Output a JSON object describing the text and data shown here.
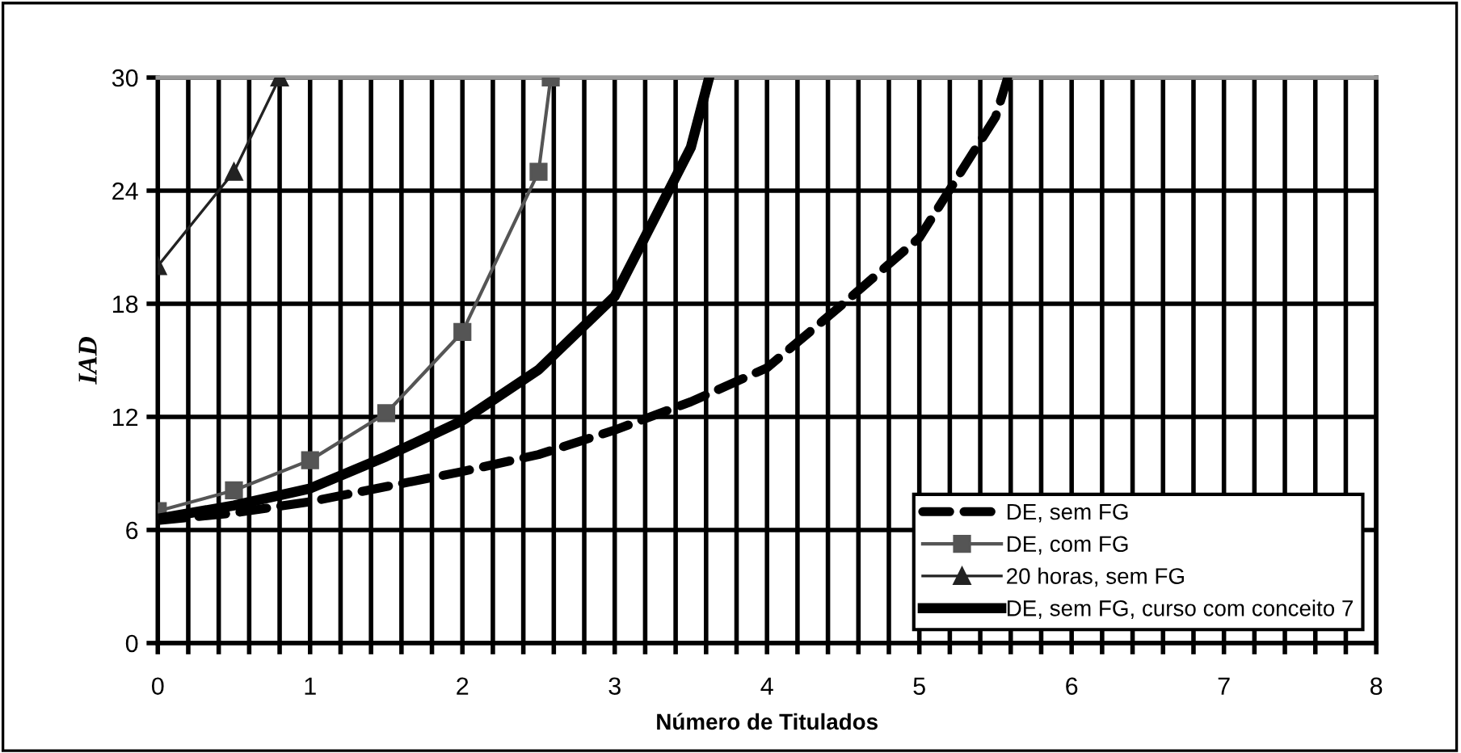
{
  "chart_data": {
    "type": "line",
    "xlabel": "Número de Titulados",
    "ylabel": "IAD",
    "xlim": [
      0,
      8
    ],
    "ylim": [
      0,
      30
    ],
    "xticks": [
      0,
      {
        "value": 0.2,
        "label": null
      },
      {
        "value": 0.4,
        "label": null
      },
      {
        "value": 0.6,
        "label": null
      },
      {
        "value": 0.8,
        "label": null
      },
      1,
      {
        "value": 1.2,
        "label": null
      },
      {
        "value": 1.4,
        "label": null
      },
      {
        "value": 1.6,
        "label": null
      },
      {
        "value": 1.8,
        "label": null
      },
      2,
      {
        "value": 2.2,
        "label": null
      },
      {
        "value": 2.4,
        "label": null
      },
      {
        "value": 2.6,
        "label": null
      },
      {
        "value": 2.8,
        "label": null
      },
      3,
      {
        "value": 3.2,
        "label": null
      },
      {
        "value": 3.4,
        "label": null
      },
      {
        "value": 3.6,
        "label": null
      },
      {
        "value": 3.8,
        "label": null
      },
      4,
      {
        "value": 4.2,
        "label": null
      },
      {
        "value": 4.4,
        "label": null
      },
      {
        "value": 4.6,
        "label": null
      },
      {
        "value": 4.8,
        "label": null
      },
      5,
      {
        "value": 5.2,
        "label": null
      },
      {
        "value": 5.4,
        "label": null
      },
      {
        "value": 5.6,
        "label": null
      },
      {
        "value": 5.8,
        "label": null
      },
      6,
      {
        "value": 6.2,
        "label": null
      },
      {
        "value": 6.4,
        "label": null
      },
      {
        "value": 6.6,
        "label": null
      },
      {
        "value": 6.8,
        "label": null
      },
      7,
      {
        "value": 7.2,
        "label": null
      },
      {
        "value": 7.4,
        "label": null
      },
      {
        "value": 7.6,
        "label": null
      },
      {
        "value": 7.8,
        "label": null
      },
      8
    ],
    "yticks": [
      0,
      6,
      12,
      18,
      24,
      30
    ],
    "grid": true,
    "legend": "bottom right",
    "series": [
      {
        "name": "DE, sem FG",
        "color": "#000000",
        "line_style": "dashed",
        "marker": "none",
        "x": [
          0,
          0.5,
          1,
          1.5,
          2,
          2.5,
          3,
          3.5,
          4,
          4.5,
          5,
          5.5,
          5.58
        ],
        "values": [
          6.5,
          6.9,
          7.5,
          8.3,
          9.1,
          10.0,
          11.3,
          12.8,
          14.6,
          18.0,
          21.5,
          27.9,
          30
        ]
      },
      {
        "name": "DE, com FG",
        "color": "#555555",
        "line_style": "solid",
        "marker": "square",
        "x": [
          0,
          0.5,
          1,
          1.5,
          2,
          2.5,
          2.58
        ],
        "values": [
          7.0,
          8.1,
          9.7,
          12.2,
          16.5,
          25.0,
          30
        ]
      },
      {
        "name": "20 horas, sem FG",
        "color": "#222222",
        "line_style": "solid",
        "marker": "triangle",
        "x": [
          0,
          0.5,
          0.8
        ],
        "values": [
          20,
          25,
          30
        ]
      },
      {
        "name": "DE, sem FG, curso com conceito 7",
        "color": "#000000",
        "line_style": "solid",
        "marker": "none",
        "x": [
          0,
          0.5,
          1,
          1.5,
          2,
          2.5,
          3,
          3.5,
          3.62
        ],
        "values": [
          6.6,
          7.3,
          8.2,
          9.9,
          11.8,
          14.5,
          18.4,
          26.3,
          30
        ]
      }
    ]
  }
}
